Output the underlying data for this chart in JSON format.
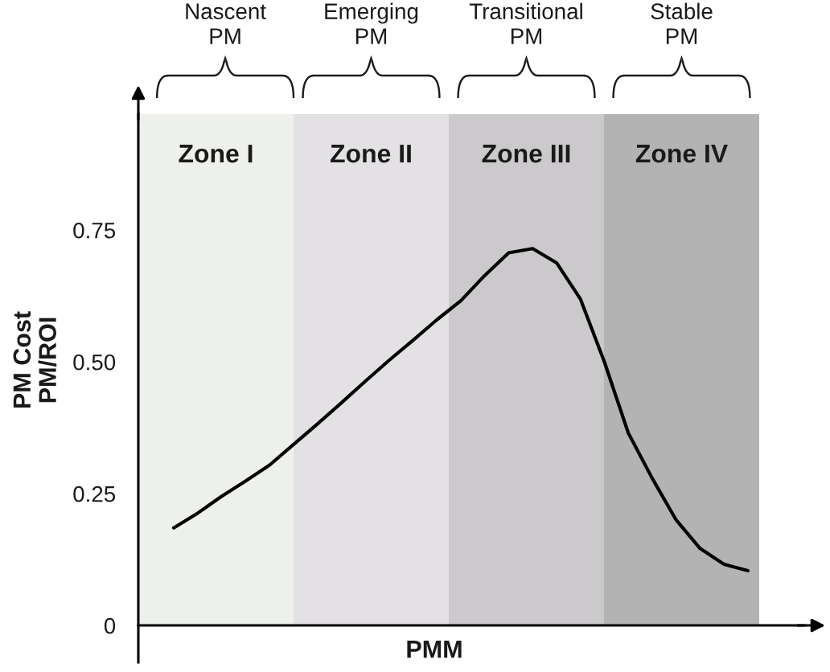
{
  "chart_data": {
    "type": "line",
    "xlabel": "PMM",
    "ylabel": "PM Cost\nPM/ROI",
    "categories": [
      null,
      null,
      null,
      null,
      null,
      null,
      null,
      null,
      null,
      null,
      null,
      null,
      null,
      null,
      null,
      null,
      null,
      null,
      null,
      null,
      null,
      null,
      null,
      null,
      null
    ],
    "series": [
      {
        "color": "#000000",
        "values": [
          0.185,
          0.213,
          0.245,
          0.274,
          0.304,
          0.343,
          0.382,
          0.422,
          0.463,
          0.503,
          0.541,
          0.58,
          0.616,
          0.664,
          0.707,
          0.715,
          0.688,
          0.619,
          0.5,
          0.365,
          0.279,
          0.2,
          0.146,
          0.116,
          0.104
        ]
      }
    ],
    "ylim": [
      -0.07,
      0.97
    ],
    "yticks": [
      0,
      0.25,
      {
        "value": 0.5,
        "label": "0.50"
      },
      0.75
    ],
    "tick_labels": "y",
    "annotations": [
      "Nascent\nPM",
      "Emerging\nPM",
      "Transitional\nPM",
      "Stable\nPM",
      "Zone I",
      "Zone II",
      "Zone III",
      "Zone IV"
    ]
  }
}
